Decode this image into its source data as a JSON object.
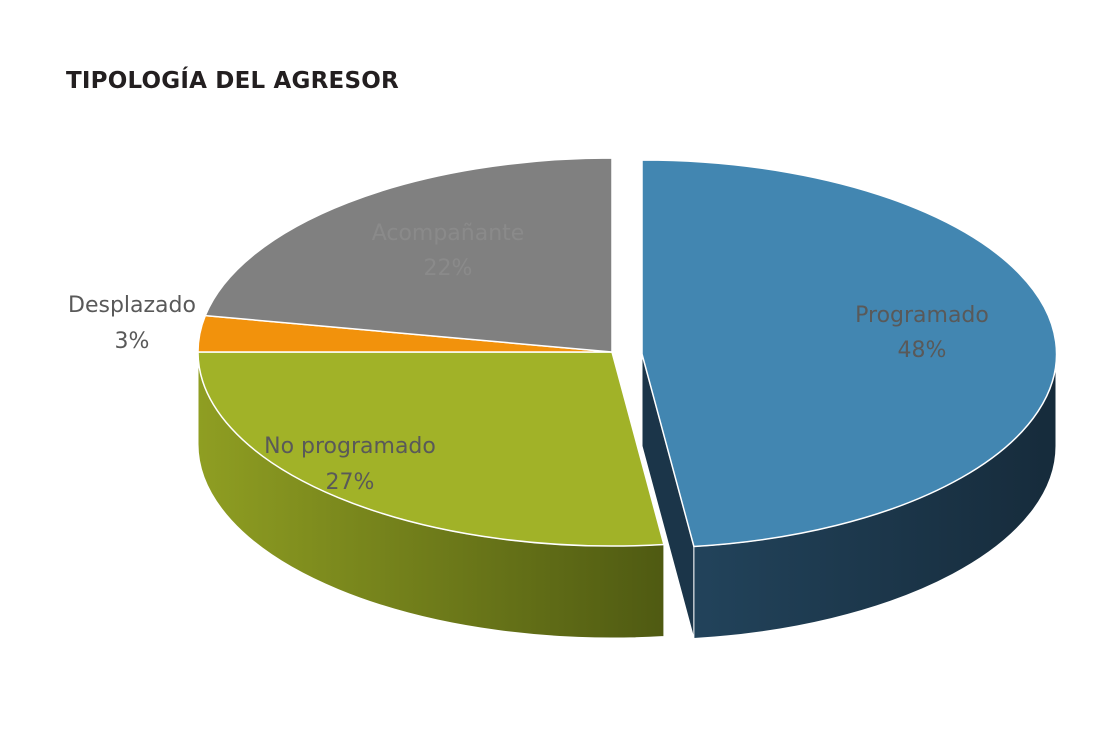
{
  "chart_data": {
    "type": "pie",
    "title": "TIPOLOGÍA DEL AGRESOR",
    "slices": [
      {
        "label": "Programado",
        "value": 48,
        "value_label": "48%",
        "color": "#4286b1",
        "side_color": "#1b3549",
        "label_color": "#595959"
      },
      {
        "label": "No programado",
        "value": 27,
        "value_label": "27%",
        "color": "#a1b228",
        "side_color": "#6b7a1b",
        "label_color": "#595959"
      },
      {
        "label": "Desplazado",
        "value": 3,
        "value_label": "3%",
        "color": "#f2920c",
        "side_color": "#6b3c04",
        "label_color": "#595959"
      },
      {
        "label": "Acompañante",
        "value": 22,
        "value_label": "22%",
        "color": "#808080",
        "side_color": "#3c3c3c",
        "label_color": "#8a8a8a"
      }
    ],
    "exploded": [
      "Programado"
    ],
    "three_d": true,
    "legend": "none",
    "labels_on_slices": true
  }
}
